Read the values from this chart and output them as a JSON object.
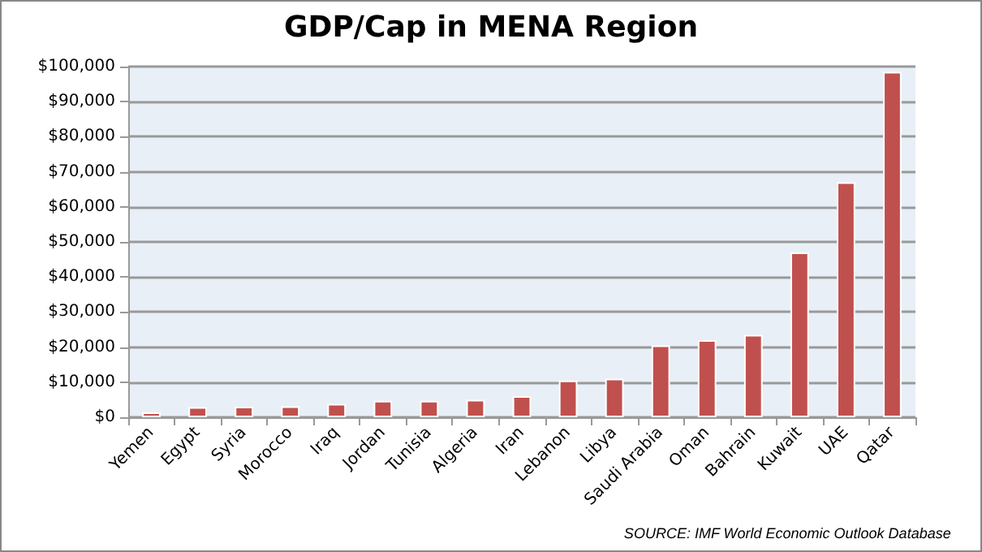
{
  "chart_data": {
    "type": "bar",
    "title": "GDP/Cap in MENA Region",
    "categories": [
      "Yemen",
      "Egypt",
      "Syria",
      "Morocco",
      "Iraq",
      "Jordan",
      "Tunisia",
      "Algeria",
      "Iran",
      "Lebanon",
      "Libya",
      "Saudi Arabia",
      "Oman",
      "Bahrain",
      "Kuwait",
      "UAE",
      "Qatar"
    ],
    "values": [
      1400,
      2900,
      3000,
      3100,
      3800,
      4700,
      4700,
      5000,
      6000,
      10500,
      11000,
      20500,
      22000,
      23500,
      47000,
      67000,
      98500
    ],
    "color": "#c0504d",
    "ylim": [
      0,
      100000
    ],
    "yticks": [
      {
        "value": 0,
        "label": "$0"
      },
      {
        "value": 10000,
        "label": "$10,000"
      },
      {
        "value": 20000,
        "label": "$20,000"
      },
      {
        "value": 30000,
        "label": "$30,000"
      },
      {
        "value": 40000,
        "label": "$40,000"
      },
      {
        "value": 50000,
        "label": "$50,000"
      },
      {
        "value": 60000,
        "label": "$60,000"
      },
      {
        "value": 70000,
        "label": "$70,000"
      },
      {
        "value": 80000,
        "label": "$80,000"
      },
      {
        "value": 90000,
        "label": "$90,000"
      },
      {
        "value": 100000,
        "label": "$100,000"
      }
    ],
    "grid": "y",
    "annotations": [
      "SOURCE: IMF World Economic Outlook Database"
    ]
  }
}
